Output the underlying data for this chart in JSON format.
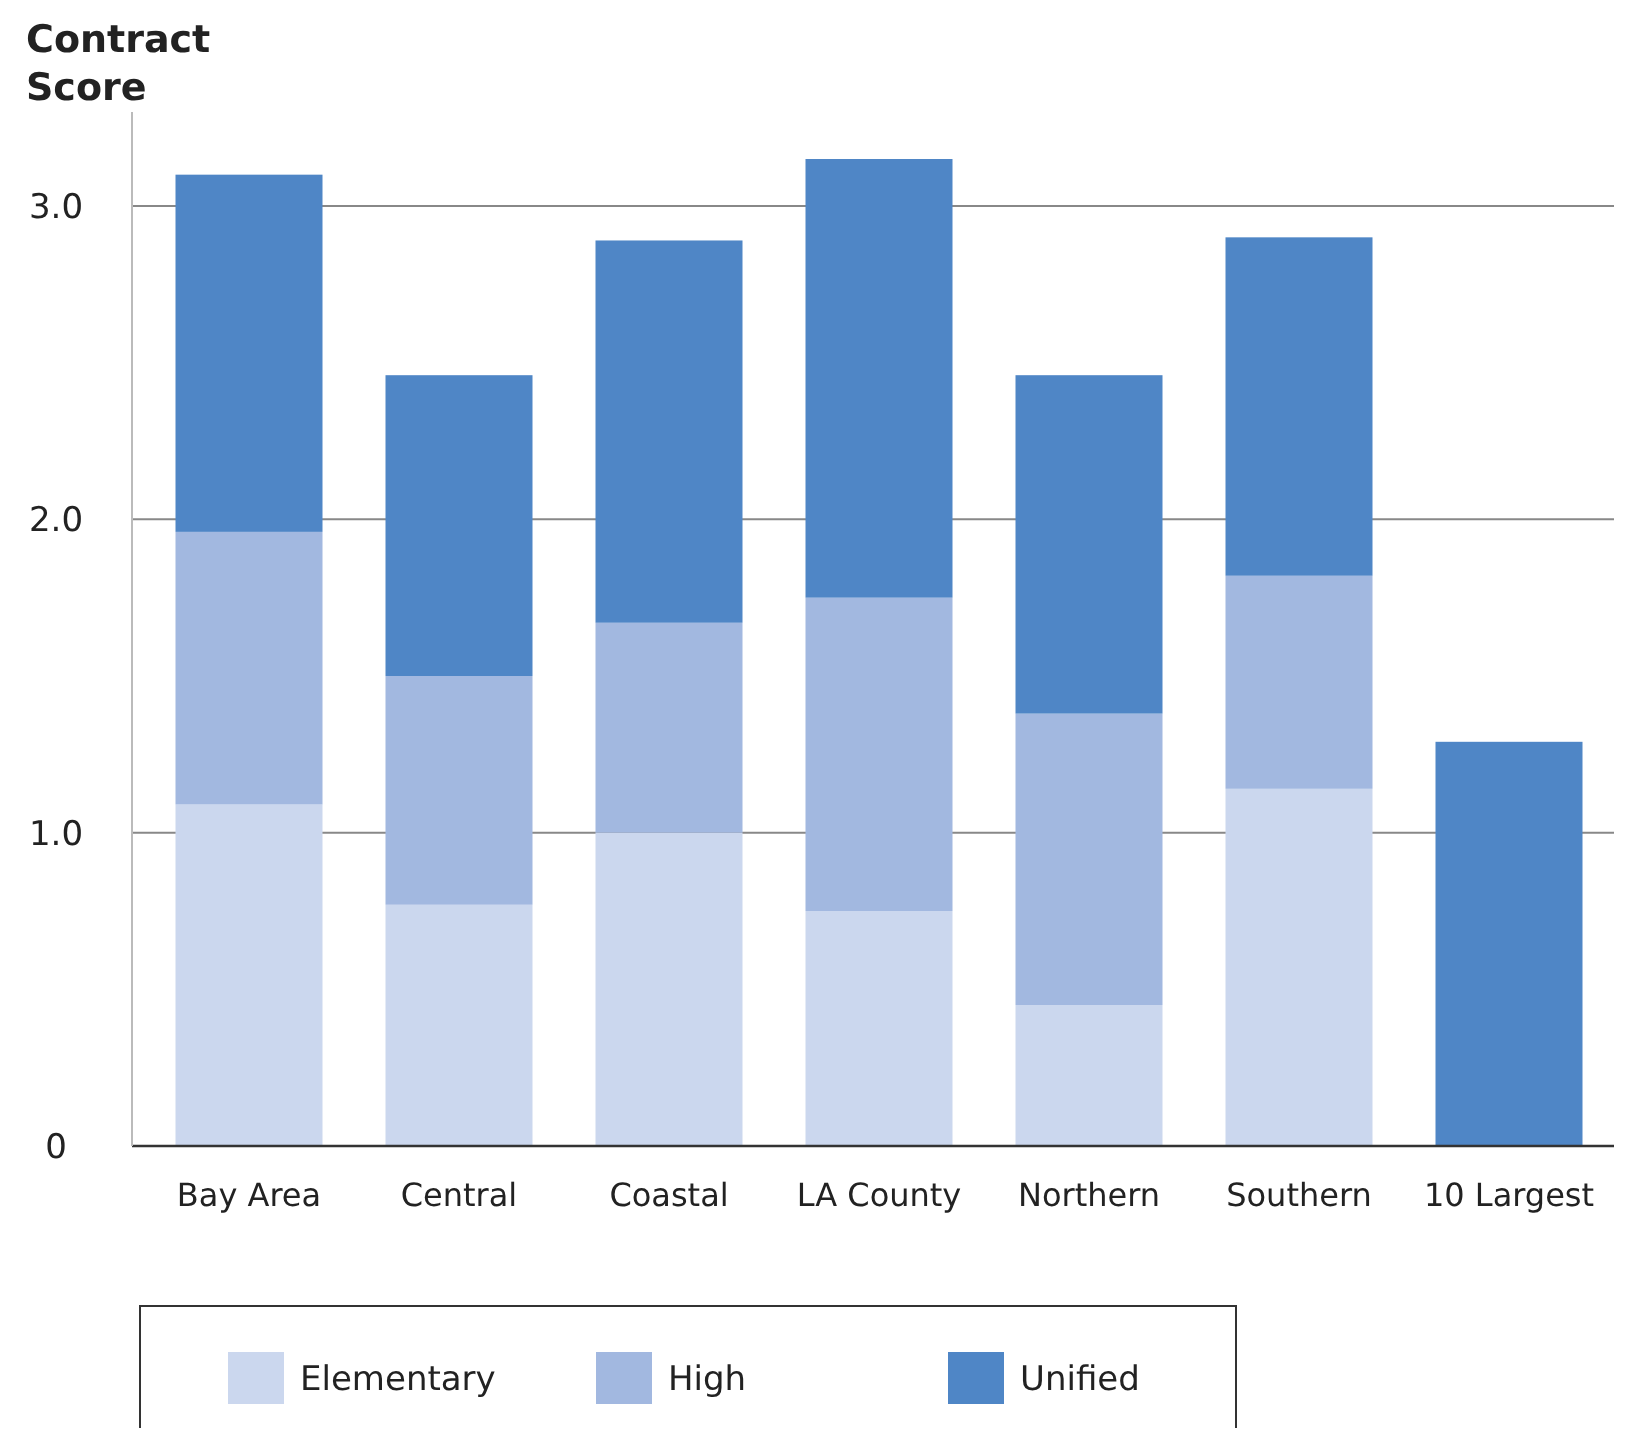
{
  "chart_data": {
    "type": "bar",
    "ylabel": "Contract Score",
    "stacked": true,
    "categories": [
      "Bay Area",
      "Central",
      "Coastal",
      "LA County",
      "Northern",
      "Southern",
      "10 Largest"
    ],
    "series": [
      {
        "name": "Elementary",
        "color": "#cbd7ee",
        "values": [
          1.09,
          0.77,
          1.0,
          0.75,
          0.45,
          1.14,
          null
        ]
      },
      {
        "name": "High",
        "color": "#a2b8e0",
        "values": [
          0.87,
          0.73,
          0.67,
          1.0,
          0.93,
          0.68,
          null
        ]
      },
      {
        "name": "Unified",
        "color": "#4f86c6",
        "values": [
          1.14,
          0.96,
          1.22,
          1.4,
          1.08,
          1.08,
          1.29
        ]
      }
    ],
    "ylim": [
      0,
      3.3
    ],
    "yticks": [
      0,
      {
        "value": 1,
        "label": "1.0"
      },
      {
        "value": 2,
        "label": "2.0"
      },
      {
        "value": 3,
        "label": "3.0"
      }
    ],
    "grid": "y",
    "legend": "bottom"
  }
}
